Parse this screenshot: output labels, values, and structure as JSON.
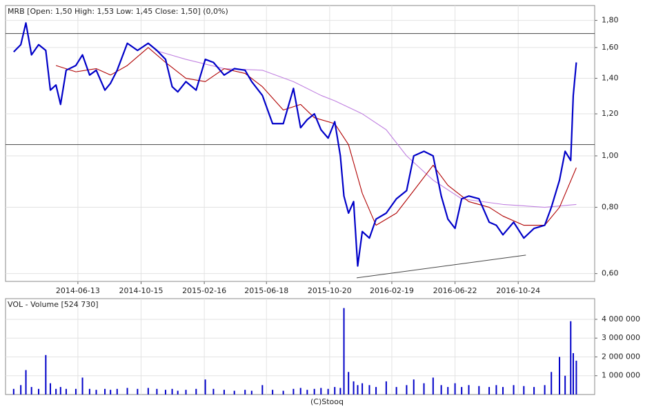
{
  "chart_data": [
    {
      "type": "line",
      "title": "MRB [Open: 1,50  High: 1,53  Low: 1,45  Close: 1,50] (0,0%)",
      "ylog": true,
      "ylim": [
        0.58,
        1.92
      ],
      "yticks": [
        {
          "value": 0.6,
          "label": "0,60"
        },
        {
          "value": 0.8,
          "label": "0,80"
        },
        {
          "value": 1.0,
          "label": "1,00"
        },
        {
          "value": 1.2,
          "label": "1,20"
        },
        {
          "value": 1.4,
          "label": "1,40"
        },
        {
          "value": 1.6,
          "label": "1,60"
        },
        {
          "value": 1.8,
          "label": "1,80"
        }
      ],
      "xlim": [
        "2014-01-22",
        "2017-03-23"
      ],
      "xticks": [
        "2014-06-13",
        "2014-10-15",
        "2015-02-16",
        "2015-06-18",
        "2015-10-20",
        "2016-02-19",
        "2016-06-22",
        "2016-10-24"
      ],
      "grid": true,
      "reference_lines": [
        1.7,
        1.05
      ],
      "trend_line": {
        "x": [
          "2015-12-12",
          "2016-11-08"
        ],
        "values": [
          0.589,
          0.65
        ]
      },
      "series": [
        {
          "color": "#0000c8",
          "x": [
            "2014-02-07",
            "2014-02-21",
            "2014-03-03",
            "2014-03-14",
            "2014-03-28",
            "2014-04-11",
            "2014-04-20",
            "2014-05-01",
            "2014-05-10",
            "2014-05-21",
            "2014-06-09",
            "2014-06-22",
            "2014-07-06",
            "2014-07-19",
            "2014-08-05",
            "2014-08-16",
            "2014-08-29",
            "2014-09-18",
            "2014-10-08",
            "2014-10-29",
            "2014-11-15",
            "2014-12-02",
            "2014-12-15",
            "2014-12-26",
            "2015-01-11",
            "2015-01-31",
            "2015-02-18",
            "2015-03-06",
            "2015-03-27",
            "2015-04-16",
            "2015-05-07",
            "2015-05-20",
            "2015-06-10",
            "2015-06-30",
            "2015-07-21",
            "2015-08-10",
            "2015-08-24",
            "2015-09-06",
            "2015-09-20",
            "2015-10-03",
            "2015-10-17",
            "2015-10-30",
            "2015-11-10",
            "2015-11-17",
            "2015-11-26",
            "2015-12-06",
            "2015-12-14",
            "2015-12-23",
            "2016-01-06",
            "2016-01-19",
            "2016-02-08",
            "2016-02-28",
            "2016-03-19",
            "2016-04-02",
            "2016-04-22",
            "2016-05-10",
            "2016-05-26",
            "2016-06-08",
            "2016-06-22",
            "2016-07-05",
            "2016-07-19",
            "2016-08-08",
            "2016-08-28",
            "2016-09-11",
            "2016-09-24",
            "2016-10-15",
            "2016-11-04",
            "2016-11-24",
            "2016-12-15",
            "2016-12-28",
            "2017-01-13",
            "2017-01-24",
            "2017-02-04",
            "2017-02-09",
            "2017-02-15"
          ],
          "values": [
            1.57,
            1.62,
            1.78,
            1.55,
            1.62,
            1.58,
            1.33,
            1.36,
            1.25,
            1.45,
            1.48,
            1.55,
            1.42,
            1.45,
            1.33,
            1.37,
            1.45,
            1.63,
            1.58,
            1.63,
            1.58,
            1.52,
            1.35,
            1.32,
            1.38,
            1.33,
            1.52,
            1.5,
            1.42,
            1.46,
            1.45,
            1.38,
            1.3,
            1.15,
            1.15,
            1.34,
            1.13,
            1.17,
            1.2,
            1.12,
            1.08,
            1.16,
            1.0,
            0.84,
            0.78,
            0.82,
            0.62,
            0.72,
            0.7,
            0.76,
            0.78,
            0.83,
            0.86,
            1.0,
            1.02,
            1.0,
            0.84,
            0.76,
            0.73,
            0.83,
            0.84,
            0.83,
            0.75,
            0.74,
            0.71,
            0.75,
            0.7,
            0.73,
            0.74,
            0.8,
            0.9,
            1.02,
            0.98,
            1.3,
            1.5
          ]
        },
        {
          "color": "#b00000",
          "x": [
            "2014-05-01",
            "2014-06-09",
            "2014-07-19",
            "2014-08-16",
            "2014-09-18",
            "2014-10-29",
            "2014-12-02",
            "2015-01-11",
            "2015-02-18",
            "2015-03-27",
            "2015-05-07",
            "2015-06-10",
            "2015-07-21",
            "2015-08-24",
            "2015-09-20",
            "2015-10-30",
            "2015-11-26",
            "2015-12-23",
            "2016-01-19",
            "2016-02-28",
            "2016-04-02",
            "2016-05-10",
            "2016-06-08",
            "2016-07-19",
            "2016-08-28",
            "2016-09-24",
            "2016-11-04",
            "2016-12-15",
            "2017-01-13",
            "2017-02-15"
          ],
          "values": [
            1.48,
            1.44,
            1.46,
            1.42,
            1.48,
            1.6,
            1.5,
            1.4,
            1.38,
            1.46,
            1.43,
            1.35,
            1.22,
            1.25,
            1.18,
            1.15,
            1.05,
            0.85,
            0.74,
            0.78,
            0.86,
            0.96,
            0.88,
            0.82,
            0.8,
            0.77,
            0.74,
            0.74,
            0.8,
            0.95
          ]
        },
        {
          "color": "#c080e0",
          "x": [
            "2014-11-12",
            "2015-01-11",
            "2015-03-27",
            "2015-06-10",
            "2015-08-10",
            "2015-10-03",
            "2015-10-30",
            "2015-12-23",
            "2016-02-08",
            "2016-03-19",
            "2016-05-10",
            "2016-07-05",
            "2016-09-24",
            "2016-12-15",
            "2017-02-15"
          ],
          "values": [
            1.58,
            1.52,
            1.46,
            1.45,
            1.38,
            1.3,
            1.27,
            1.2,
            1.12,
            1.0,
            0.9,
            0.83,
            0.81,
            0.8,
            0.81
          ]
        }
      ]
    },
    {
      "type": "bar",
      "title": "VOL - Volume [524 730]",
      "ylim": [
        0,
        5100000
      ],
      "yticks": [
        {
          "value": 1000000,
          "label": "1 000 000"
        },
        {
          "value": 2000000,
          "label": "2 000 000"
        },
        {
          "value": 3000000,
          "label": "3 000 000"
        },
        {
          "value": 4000000,
          "label": "4 000 000"
        }
      ],
      "xlim": [
        "2014-01-22",
        "2017-03-23"
      ],
      "grid": true,
      "color": "#0000c8",
      "x": [
        "2014-02-07",
        "2014-02-21",
        "2014-03-03",
        "2014-03-14",
        "2014-03-28",
        "2014-04-11",
        "2014-04-20",
        "2014-05-01",
        "2014-05-10",
        "2014-05-21",
        "2014-06-09",
        "2014-06-22",
        "2014-07-06",
        "2014-07-19",
        "2014-08-05",
        "2014-08-16",
        "2014-08-29",
        "2014-09-18",
        "2014-10-08",
        "2014-10-29",
        "2014-11-15",
        "2014-12-02",
        "2014-12-15",
        "2014-12-26",
        "2015-01-11",
        "2015-01-31",
        "2015-02-18",
        "2015-03-06",
        "2015-03-27",
        "2015-04-16",
        "2015-05-07",
        "2015-05-20",
        "2015-06-10",
        "2015-06-30",
        "2015-07-21",
        "2015-08-10",
        "2015-08-24",
        "2015-09-06",
        "2015-09-20",
        "2015-10-03",
        "2015-10-17",
        "2015-10-30",
        "2015-11-10",
        "2015-11-17",
        "2015-11-26",
        "2015-12-06",
        "2015-12-14",
        "2015-12-23",
        "2016-01-06",
        "2016-01-19",
        "2016-02-08",
        "2016-02-28",
        "2016-03-19",
        "2016-04-02",
        "2016-04-22",
        "2016-05-10",
        "2016-05-26",
        "2016-06-08",
        "2016-06-22",
        "2016-07-05",
        "2016-07-19",
        "2016-08-08",
        "2016-08-28",
        "2016-09-11",
        "2016-09-24",
        "2016-10-15",
        "2016-11-04",
        "2016-11-24",
        "2016-12-15",
        "2016-12-28",
        "2017-01-13",
        "2017-01-24",
        "2017-02-04",
        "2017-02-09",
        "2017-02-15"
      ],
      "values": [
        300000,
        500000,
        1300000,
        400000,
        300000,
        2100000,
        600000,
        300000,
        400000,
        300000,
        300000,
        900000,
        300000,
        250000,
        300000,
        250000,
        300000,
        350000,
        300000,
        350000,
        300000,
        250000,
        300000,
        200000,
        250000,
        300000,
        800000,
        300000,
        250000,
        200000,
        250000,
        200000,
        500000,
        250000,
        200000,
        300000,
        350000,
        250000,
        300000,
        350000,
        300000,
        400000,
        350000,
        4600000,
        1200000,
        700000,
        500000,
        600000,
        500000,
        400000,
        700000,
        400000,
        500000,
        800000,
        600000,
        900000,
        500000,
        400000,
        600000,
        400000,
        500000,
        450000,
        400000,
        500000,
        400000,
        500000,
        450000,
        400000,
        500000,
        1200000,
        2000000,
        1000000,
        3900000,
        2200000,
        1800000
      ]
    }
  ],
  "footer": "(C)Stooq"
}
